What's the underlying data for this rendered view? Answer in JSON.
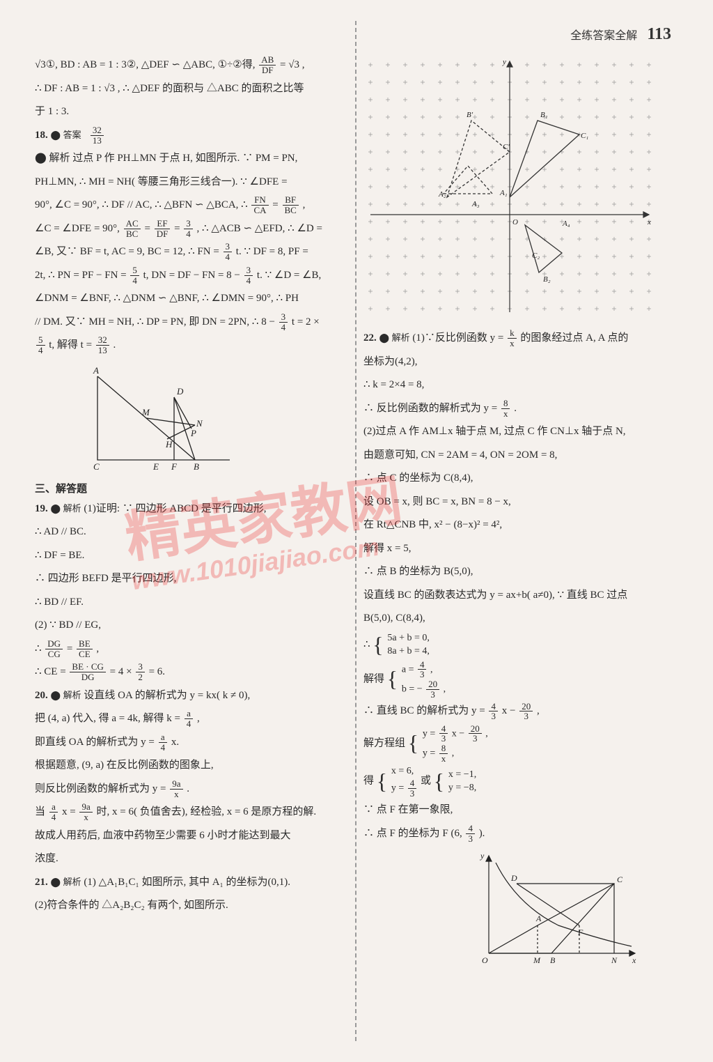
{
  "page": {
    "header_label": "全练答案全解",
    "page_number": "113"
  },
  "left": {
    "l1": "√3①, BD : AB = 1 : 3②, △DEF ∽ △ABC, ①÷②得, ",
    "l1f_num": "AB",
    "l1f_den": "DF",
    "l1_tail": " = √3 ,",
    "l2": "∴ DF : AB = 1 : √3 , ∴ △DEF 的面积与 △ABC 的面积之比等",
    "l3": "于 1 : 3.",
    "q18_num": "18.",
    "q18_ans_label": "⬤ 答案",
    "q18_frac_num": "32",
    "q18_frac_den": "13",
    "q18_l1": "⬤ 解析  过点 P 作 PH⊥MN 于点 H, 如图所示. ∵ PM = PN,",
    "q18_l2": "PH⊥MN, ∴ MH = NH( 等腰三角形三线合一). ∵ ∠DFE =",
    "q18_l3a": "90°, ∠C = 90°, ∴ DF // AC, ∴ △BFN ∽ △BCA, ∴ ",
    "q18_l3f1n": "FN",
    "q18_l3f1d": "CA",
    "q18_l3eq": " = ",
    "q18_l3f2n": "BF",
    "q18_l3f2d": "BC",
    "q18_l3c": ",",
    "q18_l4a": "∠C = ∠DFE = 90°, ",
    "q18_l4f1n": "AC",
    "q18_l4f1d": "BC",
    "q18_l4e1": " = ",
    "q18_l4f2n": "EF",
    "q18_l4f2d": "DF",
    "q18_l4e2": " = ",
    "q18_l4f3n": "3",
    "q18_l4f3d": "4",
    "q18_l4b": ", ∴ △ACB ∽ △EFD, ∴ ∠D =",
    "q18_l5a": "∠B, 又∵ BF = t, AC = 9, BC = 12, ∴ FN = ",
    "q18_l5fn": "3",
    "q18_l5fd": "4",
    "q18_l5b": " t. ∵ DF = 8, PF =",
    "q18_l6a": "2t, ∴ PN = PF − FN = ",
    "q18_l6f1n": "5",
    "q18_l6f1d": "4",
    "q18_l6b": " t, DN = DF − FN = 8 − ",
    "q18_l6f2n": "3",
    "q18_l6f2d": "4",
    "q18_l6c": " t. ∵ ∠D = ∠B,",
    "q18_l7": "∠DNM = ∠BNF, ∴ △DNM ∽ △BNF, ∴ ∠DMN = 90°, ∴ PH",
    "q18_l8a": "// DM. 又∵ MH = NH, ∴ DP = PN, 即 DN = 2PN, ∴ 8 − ",
    "q18_l8fn": "3",
    "q18_l8fd": "4",
    "q18_l8b": " t = 2 ×",
    "q18_l9a": "",
    "q18_l9f1n": "5",
    "q18_l9f1d": "4",
    "q18_l9b": " t, 解得 t = ",
    "q18_l9f2n": "32",
    "q18_l9f2d": "13",
    "q18_l9c": ".",
    "section3": "三、解答题",
    "q19_num": "19.",
    "q19_label": "⬤ 解析",
    "q19_l1": "(1)证明: ∵ 四边形 ABCD 是平行四边形,",
    "q19_l2": "∴ AD // BC.",
    "q19_l3": "∴ DF = BE.",
    "q19_l4": "∴ 四边形 BEFD 是平行四边形,",
    "q19_l5": "∴ BD // EF.",
    "q19_l6": "(2) ∵ BD // EG,",
    "q19_l7a": "∴ ",
    "q19_l7f1n": "DG",
    "q19_l7f1d": "CG",
    "q19_l7e": " = ",
    "q19_l7f2n": "BE",
    "q19_l7f2d": "CE",
    "q19_l7c": ",",
    "q19_l8a": "∴ CE = ",
    "q19_l8fn": "BE · CG",
    "q19_l8fd": "DG",
    "q19_l8b": " = 4 × ",
    "q19_l8f2n": "3",
    "q19_l8f2d": "2",
    "q19_l8c": " = 6.",
    "q20_num": "20.",
    "q20_label": "⬤ 解析",
    "q20_l1": "设直线 OA 的解析式为 y = kx( k ≠ 0),",
    "q20_l2a": "把 (4, a) 代入, 得 a = 4k, 解得 k = ",
    "q20_l2fn": "a",
    "q20_l2fd": "4",
    "q20_l2c": ",",
    "q20_l3a": "即直线 OA 的解析式为 y = ",
    "q20_l3fn": "a",
    "q20_l3fd": "4",
    "q20_l3b": " x.",
    "q20_l4": "根据题意, (9, a) 在反比例函数的图象上,",
    "q20_l5a": "则反比例函数的解析式为 y = ",
    "q20_l5fn": "9a",
    "q20_l5fd": "x",
    "q20_l5c": ".",
    "q20_l6a": "当 ",
    "q20_l6f1n": "a",
    "q20_l6f1d": "4",
    "q20_l6e": " x = ",
    "q20_l6f2n": "9a",
    "q20_l6f2d": "x",
    "q20_l6b": " 时, x = 6( 负值舍去), 经检验, x = 6 是原方程的解.",
    "q20_l7": "故成人用药后, 血液中药物至少需要 6 小时才能达到最大",
    "q20_l8": "浓度.",
    "q21_num": "21.",
    "q21_label": "⬤ 解析",
    "q21_l1": "(1) △A₁B₁C₁ 如图所示, 其中 A₁ 的坐标为(0,1).",
    "q21_l2": "(2)符合条件的 △A₂B₂C₂ 有两个, 如图所示."
  },
  "right": {
    "q22_num": "22.",
    "q22_label": "⬤ 解析",
    "q22_l1a": "(1)∵反比例函数 y = ",
    "q22_l1fn": "k",
    "q22_l1fd": "x",
    "q22_l1b": " 的图象经过点 A, A 点的",
    "q22_l2": "坐标为(4,2),",
    "q22_l3": "∴ k = 2×4 = 8,",
    "q22_l4a": "∴ 反比例函数的解析式为 y = ",
    "q22_l4fn": "8",
    "q22_l4fd": "x",
    "q22_l4c": ".",
    "q22_l5": "(2)过点 A 作 AM⊥x 轴于点 M, 过点 C 作 CN⊥x 轴于点 N,",
    "q22_l6": "由题意可知, CN = 2AM = 4, ON = 2OM = 8,",
    "q22_l7": "∴ 点 C 的坐标为 C(8,4),",
    "q22_l8": "设 OB = x, 则 BC = x, BN = 8 − x,",
    "q22_l9": "在 Rt△CNB 中, x² − (8−x)² = 4²,",
    "q22_l10": "解得 x = 5,",
    "q22_l11": "∴ 点 B 的坐标为 B(5,0),",
    "q22_l12": "设直线 BC 的函数表达式为 y = ax+b( a≠0), ∵ 直线 BC 过点",
    "q22_l13": "B(5,0), C(8,4),",
    "q22_sys1a": "5a + b = 0,",
    "q22_sys1b": "8a + b = 4,",
    "q22_l14": "∴ ",
    "q22_l15": "解得",
    "q22_sys2a_pre": "a = ",
    "q22_sys2a_n": "4",
    "q22_sys2a_d": "3",
    "q22_sys2a_c": ",",
    "q22_sys2b_pre": "b = − ",
    "q22_sys2b_n": "20",
    "q22_sys2b_d": "3",
    "q22_sys2b_c": ",",
    "q22_l16a": "∴ 直线 BC 的解析式为 y = ",
    "q22_l16f1n": "4",
    "q22_l16f1d": "3",
    "q22_l16b": " x − ",
    "q22_l16f2n": "20",
    "q22_l16f2d": "3",
    "q22_l16c": ",",
    "q22_l17": "解方程组",
    "q22_sys3a_pre": "y = ",
    "q22_sys3a_n": "4",
    "q22_sys3a_d": "3",
    "q22_sys3a_mid": " x − ",
    "q22_sys3a_n2": "20",
    "q22_sys3a_d2": "3",
    "q22_sys3a_c": ",",
    "q22_sys3b_pre": "y = ",
    "q22_sys3b_n": "8",
    "q22_sys3b_d": "x",
    "q22_sys3b_c": ",",
    "q22_l18": "得",
    "q22_sys4a": "x = 6,",
    "q22_sys4b_pre": "y = ",
    "q22_sys4b_n": "4",
    "q22_sys4b_d": "3",
    "q22_or": "或",
    "q22_sys5a": "x = −1,",
    "q22_sys5b": "y = −8,",
    "q22_l19": "∵ 点 F 在第一象限,",
    "q22_l20a": "∴ 点 F 的坐标为 F",
    "q22_l20p1": "(",
    "q22_l20_6": "6, ",
    "q22_l20fn": "4",
    "q22_l20fd": "3",
    "q22_l20p2": ").",
    "coord_plot": {
      "x_range": [
        -7,
        8
      ],
      "y_range": [
        -6,
        8
      ],
      "axis_color": "#444",
      "grid_color": "#888",
      "points": [
        "A₁",
        "A₂",
        "B'",
        "B₁",
        "C'",
        "C₁",
        "A",
        "O",
        "A₃",
        "C₂",
        "B₂"
      ]
    },
    "geom_plot": {
      "labels": [
        "O",
        "M",
        "B",
        "N",
        "A",
        "D",
        "C",
        "F",
        "y",
        "x"
      ],
      "stroke": "#222"
    }
  },
  "left_diagram": {
    "labels": [
      "A",
      "D",
      "M",
      "N",
      "P",
      "H",
      "C",
      "E",
      "F",
      "B"
    ],
    "stroke": "#222"
  },
  "watermark": {
    "text": "精英家教网",
    "url": "www.1010jiajiao.com"
  },
  "colors": {
    "page_bg": "#f5f1ed",
    "text": "#2a2a2a",
    "wm": "rgba(232,40,40,0.28)"
  }
}
